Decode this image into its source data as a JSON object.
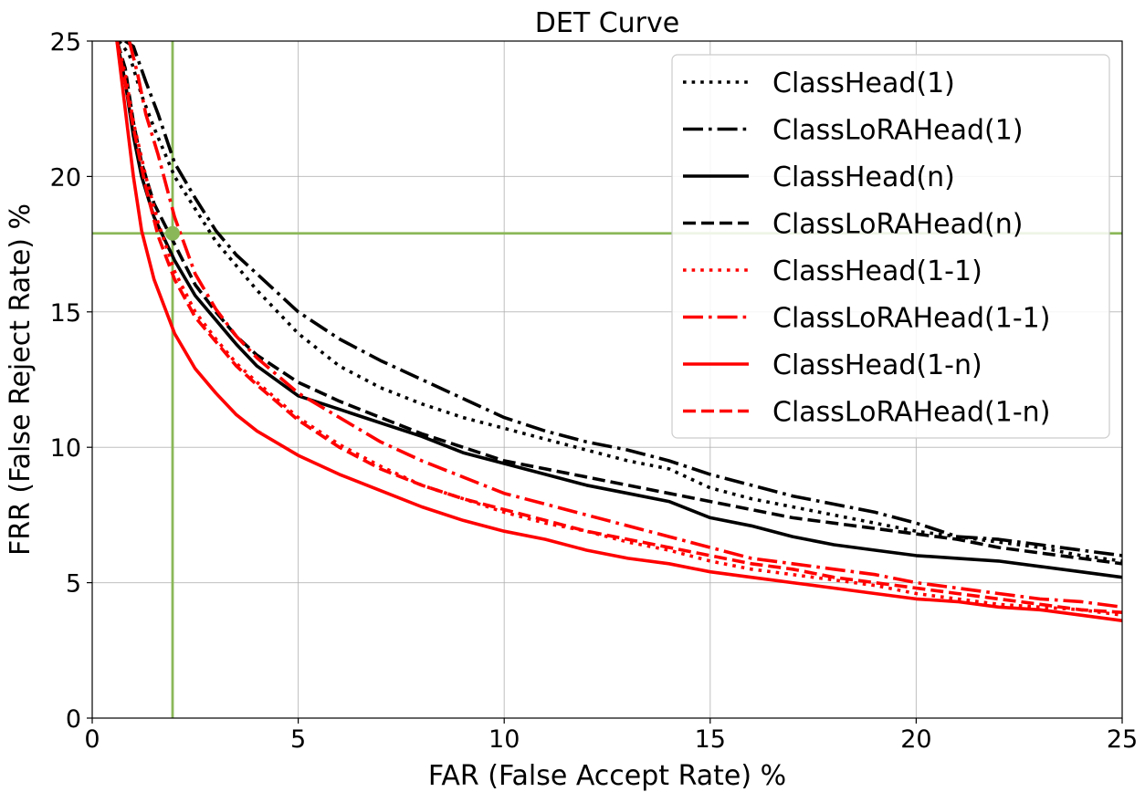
{
  "chart_data": {
    "type": "line",
    "title": "DET Curve",
    "xlabel": "FAR (False Accept Rate) %",
    "ylabel": "FRR (False Reject Rate) %",
    "xlim": [
      0,
      25
    ],
    "ylim": [
      0,
      25
    ],
    "xticks": [
      "0",
      "5",
      "10",
      "15",
      "20",
      "25"
    ],
    "yticks": [
      "0",
      "5",
      "10",
      "15",
      "20",
      "25"
    ],
    "grid": true,
    "legend_position": "top-right",
    "operating_point": {
      "x": 1.95,
      "y": 17.9,
      "color": "#8ab858"
    },
    "series": [
      {
        "name": "ClassHead(1)",
        "color": "#000000",
        "style": "dotted",
        "x": [
          0.65,
          0.9,
          1.2,
          1.5,
          2.0,
          2.5,
          3.0,
          3.5,
          4.0,
          5.0,
          6.0,
          7.0,
          8.0,
          9.0,
          10.0,
          11.0,
          12.0,
          13.0,
          14.0,
          15.0,
          16.0,
          17.0,
          18.0,
          19.0,
          20.0,
          21.0,
          22.0,
          23.0,
          24.0,
          25.0
        ],
        "y": [
          25.0,
          24.5,
          23.0,
          21.8,
          20.0,
          18.8,
          17.6,
          16.7,
          15.8,
          14.2,
          13.0,
          12.2,
          11.6,
          11.1,
          10.7,
          10.3,
          9.9,
          9.5,
          9.2,
          8.5,
          8.1,
          7.8,
          7.5,
          7.2,
          6.9,
          6.7,
          6.5,
          6.3,
          6.0,
          5.8
        ]
      },
      {
        "name": "ClassLoRAHead(1)",
        "color": "#000000",
        "style": "dashdot",
        "x": [
          0.8,
          1.0,
          1.3,
          1.6,
          2.0,
          2.5,
          3.0,
          3.5,
          4.0,
          5.0,
          6.0,
          7.0,
          8.0,
          9.0,
          10.0,
          11.0,
          12.0,
          13.0,
          14.0,
          15.0,
          16.0,
          17.0,
          18.0,
          19.0,
          20.0,
          21.0,
          22.0,
          23.0,
          24.0,
          25.0
        ],
        "y": [
          25.0,
          24.8,
          23.5,
          22.3,
          20.5,
          19.2,
          18.0,
          17.1,
          16.4,
          15.0,
          14.0,
          13.2,
          12.5,
          11.8,
          11.1,
          10.6,
          10.2,
          9.9,
          9.5,
          9.0,
          8.6,
          8.2,
          7.9,
          7.6,
          7.2,
          6.7,
          6.6,
          6.4,
          6.2,
          6.0
        ]
      },
      {
        "name": "ClassHead(n)",
        "color": "#000000",
        "style": "solid",
        "x": [
          0.6,
          0.8,
          1.0,
          1.2,
          1.5,
          2.0,
          2.5,
          3.0,
          3.5,
          4.0,
          5.0,
          6.0,
          7.0,
          8.0,
          9.0,
          10.0,
          11.0,
          12.0,
          13.0,
          14.0,
          15.0,
          16.0,
          17.0,
          18.0,
          19.0,
          20.0,
          21.0,
          22.0,
          23.0,
          24.0,
          25.0
        ],
        "y": [
          25.0,
          23.5,
          21.5,
          20.0,
          18.5,
          16.9,
          15.6,
          14.7,
          13.8,
          13.0,
          11.9,
          11.4,
          10.9,
          10.4,
          9.8,
          9.4,
          9.0,
          8.6,
          8.3,
          8.0,
          7.4,
          7.1,
          6.7,
          6.4,
          6.2,
          6.0,
          5.9,
          5.8,
          5.6,
          5.4,
          5.2
        ]
      },
      {
        "name": "ClassLoRAHead(n)",
        "color": "#000000",
        "style": "dashed",
        "x": [
          0.6,
          0.8,
          1.0,
          1.2,
          1.5,
          2.0,
          2.5,
          3.0,
          3.5,
          4.0,
          5.0,
          6.0,
          7.0,
          8.0,
          9.0,
          10.0,
          11.0,
          12.0,
          13.0,
          14.0,
          15.0,
          16.0,
          17.0,
          18.0,
          19.0,
          20.0,
          21.0,
          22.0,
          23.0,
          24.0,
          25.0
        ],
        "y": [
          25.0,
          24.0,
          22.0,
          20.5,
          19.0,
          17.5,
          16.0,
          15.0,
          14.1,
          13.4,
          12.4,
          11.7,
          11.1,
          10.5,
          10.0,
          9.5,
          9.2,
          8.9,
          8.6,
          8.3,
          8.0,
          7.7,
          7.4,
          7.2,
          7.0,
          6.8,
          6.6,
          6.3,
          6.1,
          5.9,
          5.7
        ]
      },
      {
        "name": "ClassHead(1-1)",
        "color": "#ff0000",
        "style": "dotted",
        "x": [
          0.6,
          0.8,
          1.0,
          1.3,
          1.6,
          2.0,
          2.5,
          3.0,
          3.5,
          4.0,
          5.0,
          6.0,
          7.0,
          8.0,
          9.0,
          10.0,
          11.0,
          12.0,
          13.0,
          14.0,
          15.0,
          16.0,
          17.0,
          18.0,
          19.0,
          20.0,
          21.0,
          22.0,
          23.0,
          24.0,
          25.0
        ],
        "y": [
          25.0,
          23.8,
          22.0,
          20.0,
          18.3,
          16.5,
          15.0,
          14.0,
          13.1,
          12.4,
          11.1,
          10.1,
          9.3,
          8.6,
          8.1,
          7.6,
          7.2,
          6.9,
          6.5,
          6.2,
          5.8,
          5.5,
          5.3,
          5.1,
          4.9,
          4.6,
          4.4,
          4.2,
          4.1,
          4.0,
          3.8
        ]
      },
      {
        "name": "ClassLoRAHead(1-1)",
        "color": "#ff0000",
        "style": "dashdot",
        "x": [
          0.9,
          1.1,
          1.3,
          1.6,
          2.0,
          2.5,
          3.0,
          3.5,
          4.0,
          5.0,
          6.0,
          7.0,
          8.0,
          9.0,
          10.0,
          11.0,
          12.0,
          13.0,
          14.0,
          15.0,
          16.0,
          17.0,
          18.0,
          19.0,
          20.0,
          21.0,
          22.0,
          23.0,
          24.0,
          25.0
        ],
        "y": [
          25.0,
          23.8,
          22.3,
          20.8,
          18.5,
          16.4,
          15.1,
          14.1,
          13.3,
          12.0,
          11.1,
          10.2,
          9.5,
          8.9,
          8.3,
          7.9,
          7.5,
          7.1,
          6.7,
          6.3,
          5.9,
          5.7,
          5.5,
          5.3,
          5.0,
          4.8,
          4.6,
          4.4,
          4.3,
          4.1
        ]
      },
      {
        "name": "ClassHead(1-n)",
        "color": "#ff0000",
        "style": "solid",
        "x": [
          0.6,
          0.8,
          1.0,
          1.2,
          1.5,
          2.0,
          2.5,
          3.0,
          3.5,
          4.0,
          5.0,
          6.0,
          7.0,
          8.0,
          9.0,
          10.0,
          11.0,
          12.0,
          13.0,
          14.0,
          15.0,
          16.0,
          17.0,
          18.0,
          19.0,
          20.0,
          21.0,
          22.0,
          23.0,
          24.0,
          25.0
        ],
        "y": [
          25.0,
          22.5,
          20.0,
          18.0,
          16.2,
          14.2,
          12.9,
          12.0,
          11.2,
          10.6,
          9.7,
          9.0,
          8.4,
          7.8,
          7.3,
          6.9,
          6.6,
          6.2,
          5.9,
          5.7,
          5.4,
          5.2,
          5.0,
          4.8,
          4.6,
          4.4,
          4.3,
          4.1,
          4.0,
          3.8,
          3.6
        ]
      },
      {
        "name": "ClassLoRAHead(1-n)",
        "color": "#ff0000",
        "style": "dashed",
        "x": [
          0.6,
          0.8,
          1.0,
          1.3,
          1.6,
          2.0,
          2.5,
          3.0,
          3.5,
          4.0,
          5.0,
          6.0,
          7.0,
          8.0,
          9.0,
          10.0,
          11.0,
          12.0,
          13.0,
          14.0,
          15.0,
          16.0,
          17.0,
          18.0,
          19.0,
          20.0,
          21.0,
          22.0,
          23.0,
          24.0,
          25.0
        ],
        "y": [
          25.0,
          23.5,
          21.8,
          19.6,
          17.8,
          16.2,
          14.8,
          13.9,
          13.0,
          12.3,
          11.0,
          10.0,
          9.2,
          8.6,
          8.1,
          7.7,
          7.3,
          6.9,
          6.6,
          6.3,
          6.0,
          5.7,
          5.5,
          5.2,
          5.0,
          4.8,
          4.6,
          4.4,
          4.2,
          4.0,
          3.9
        ]
      }
    ]
  }
}
